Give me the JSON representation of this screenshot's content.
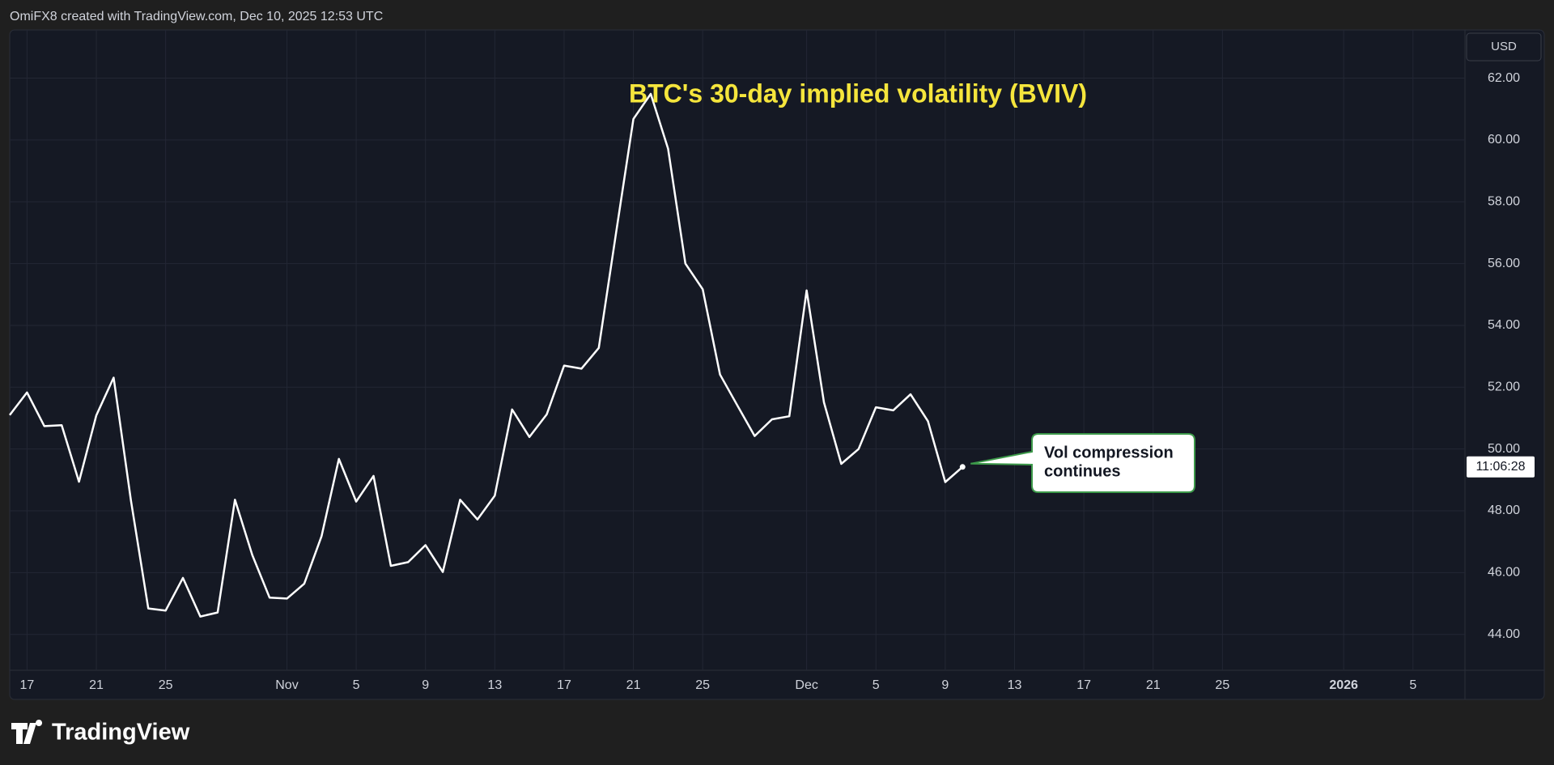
{
  "header": "OmiFX8 created with TradingView.com, Dec 10, 2025 12:53 UTC",
  "brand": "TradingView",
  "chart_data": {
    "type": "line",
    "title": "BTC's 30-day implied volatility (BVIV)",
    "annotation": [
      "Vol compression",
      "continues"
    ],
    "currency": "USD",
    "countdown": "11:06:28",
    "color": "#ffffff",
    "grid": true,
    "x": [
      "2025-10-16",
      "2025-10-17",
      "2025-10-18",
      "2025-10-19",
      "2025-10-20",
      "2025-10-21",
      "2025-10-22",
      "2025-10-23",
      "2025-10-24",
      "2025-10-25",
      "2025-10-26",
      "2025-10-27",
      "2025-10-28",
      "2025-10-29",
      "2025-10-30",
      "2025-10-31",
      "2025-11-01",
      "2025-11-02",
      "2025-11-03",
      "2025-11-04",
      "2025-11-05",
      "2025-11-06",
      "2025-11-07",
      "2025-11-08",
      "2025-11-09",
      "2025-11-10",
      "2025-11-11",
      "2025-11-12",
      "2025-11-13",
      "2025-11-14",
      "2025-11-15",
      "2025-11-16",
      "2025-11-17",
      "2025-11-18",
      "2025-11-19",
      "2025-11-20",
      "2025-11-21",
      "2025-11-22",
      "2025-11-23",
      "2025-11-24",
      "2025-11-25",
      "2025-11-26",
      "2025-11-27",
      "2025-11-28",
      "2025-11-29",
      "2025-11-30",
      "2025-12-01",
      "2025-12-02",
      "2025-12-03",
      "2025-12-04",
      "2025-12-05",
      "2025-12-06",
      "2025-12-07",
      "2025-12-08",
      "2025-12-09",
      "2025-12-10"
    ],
    "values": [
      51.1,
      51.83,
      50.74,
      50.77,
      48.94,
      51.09,
      52.31,
      48.33,
      44.84,
      44.77,
      45.83,
      44.58,
      44.71,
      48.36,
      46.57,
      45.19,
      45.16,
      45.64,
      47.18,
      49.68,
      48.3,
      49.13,
      46.22,
      46.34,
      46.89,
      46.02,
      48.36,
      47.72,
      48.49,
      51.28,
      50.39,
      51.12,
      52.7,
      52.6,
      53.27,
      57.0,
      60.68,
      61.49,
      59.72,
      56.0,
      55.17,
      52.41,
      51.41,
      50.42,
      50.96,
      51.06,
      55.13,
      51.51,
      49.52,
      50.0,
      51.35,
      51.25,
      51.77,
      50.9,
      48.93,
      49.42
    ],
    "xlim": [
      "2025-10-16",
      "2026-01-08"
    ],
    "xticks": [
      {
        "value": "2025-10-17",
        "label": "17"
      },
      {
        "value": "2025-10-21",
        "label": "21"
      },
      {
        "value": "2025-10-25",
        "label": "25"
      },
      {
        "value": "2025-11-01",
        "label": "Nov"
      },
      {
        "value": "2025-11-05",
        "label": "5"
      },
      {
        "value": "2025-11-09",
        "label": "9"
      },
      {
        "value": "2025-11-13",
        "label": "13"
      },
      {
        "value": "2025-11-17",
        "label": "17"
      },
      {
        "value": "2025-11-21",
        "label": "21"
      },
      {
        "value": "2025-11-25",
        "label": "25"
      },
      {
        "value": "2025-12-01",
        "label": "Dec"
      },
      {
        "value": "2025-12-05",
        "label": "5"
      },
      {
        "value": "2025-12-09",
        "label": "9"
      },
      {
        "value": "2025-12-13",
        "label": "13"
      },
      {
        "value": "2025-12-17",
        "label": "17"
      },
      {
        "value": "2025-12-21",
        "label": "21"
      },
      {
        "value": "2025-12-25",
        "label": "25"
      },
      {
        "value": "2026-01-01",
        "label": "2026"
      },
      {
        "value": "2026-01-05",
        "label": "5"
      }
    ],
    "ylim": [
      42.84,
      63.56
    ],
    "yticks": [
      {
        "value": 44,
        "label": "44.00"
      },
      {
        "value": 46,
        "label": "46.00"
      },
      {
        "value": 48,
        "label": "48.00"
      },
      {
        "value": 50,
        "label": "50.00"
      },
      {
        "value": 52,
        "label": "52.00"
      },
      {
        "value": 54,
        "label": "54.00"
      },
      {
        "value": 56,
        "label": "56.00"
      },
      {
        "value": 58,
        "label": "58.00"
      },
      {
        "value": 60,
        "label": "60.00"
      },
      {
        "value": 62,
        "label": "62.00"
      }
    ]
  }
}
